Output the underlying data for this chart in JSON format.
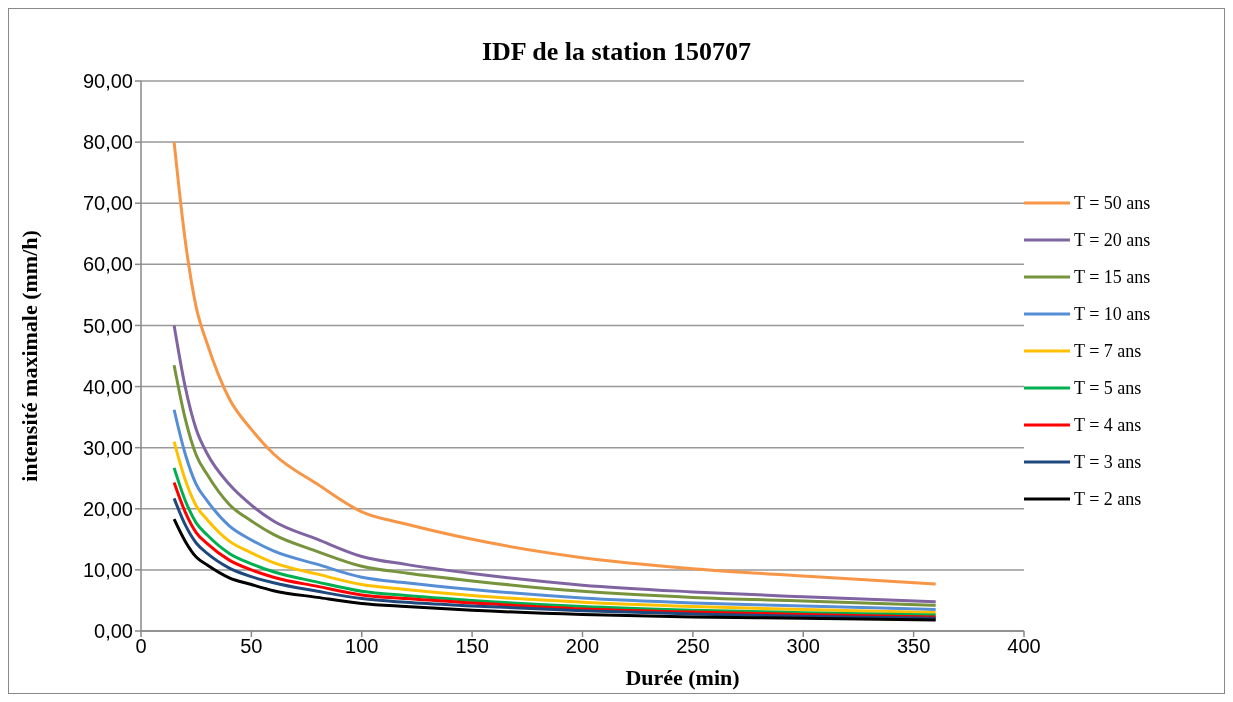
{
  "chart_data": {
    "type": "line",
    "title": "IDF de la station 150707",
    "xlabel": "Durée (min)",
    "ylabel": "intensité maximale (mm/h)",
    "x": [
      15,
      20,
      25,
      30,
      40,
      50,
      60,
      80,
      100,
      120,
      150,
      200,
      250,
      300,
      360
    ],
    "series": [
      {
        "name": "T = 50 ans",
        "color": "#f79646",
        "values": [
          80,
          64,
          53,
          47,
          38,
          33,
          29,
          24,
          19.5,
          17.5,
          15,
          12,
          10.2,
          9,
          7.7
        ]
      },
      {
        "name": "T = 20 ans",
        "color": "#8064a2",
        "values": [
          50,
          40,
          33,
          29,
          24,
          20.6,
          18,
          15,
          12.2,
          10.9,
          9.4,
          7.5,
          6.4,
          5.6,
          4.8
        ]
      },
      {
        "name": "T = 15 ans",
        "color": "#77933c",
        "values": [
          43.5,
          34.8,
          28.8,
          25.6,
          20.7,
          18,
          15.8,
          13,
          10.6,
          9.5,
          8.2,
          6.5,
          5.5,
          4.9,
          4.2
        ]
      },
      {
        "name": "T = 10 ans",
        "color": "#558ed5",
        "values": [
          36.2,
          29,
          24,
          21.3,
          17.2,
          14.9,
          13.1,
          10.9,
          8.8,
          7.9,
          6.8,
          5.4,
          4.6,
          4.1,
          3.5
        ]
      },
      {
        "name": "T = 7 ans",
        "color": "#ffc000",
        "values": [
          31,
          24.8,
          20.5,
          18.2,
          14.7,
          12.8,
          11.2,
          9.3,
          7.6,
          6.8,
          5.8,
          4.7,
          4,
          3.5,
          3
        ]
      },
      {
        "name": "T = 5 ans",
        "color": "#00b050",
        "values": [
          26.7,
          21.4,
          17.7,
          15.7,
          12.7,
          11,
          9.7,
          8,
          6.5,
          5.8,
          5,
          4,
          3.4,
          3,
          2.6
        ]
      },
      {
        "name": "T = 4 ans",
        "color": "#ff0000",
        "values": [
          24.3,
          19.5,
          16.1,
          14.3,
          11.6,
          10,
          8.8,
          7.3,
          5.9,
          5.3,
          4.6,
          3.6,
          3.1,
          2.7,
          2.3
        ]
      },
      {
        "name": "T = 3 ans",
        "color": "#1f497d",
        "values": [
          21.7,
          17.4,
          14.4,
          12.7,
          10.3,
          8.9,
          7.9,
          6.5,
          5.3,
          4.7,
          4.1,
          3.3,
          2.8,
          2.4,
          2.1
        ]
      },
      {
        "name": "T = 2 ans",
        "color": "#000000",
        "values": [
          18.3,
          14.7,
          12.1,
          10.8,
          8.7,
          7.6,
          6.6,
          5.5,
          4.5,
          4,
          3.4,
          2.7,
          2.3,
          2.1,
          1.8
        ]
      }
    ],
    "xlim": [
      0,
      400
    ],
    "xticks": [
      0,
      50,
      100,
      150,
      200,
      250,
      300,
      350,
      400
    ],
    "ylim": [
      0,
      90
    ],
    "yticks": [
      {
        "value": 0,
        "label": "0,00"
      },
      {
        "value": 10,
        "label": "10,00"
      },
      {
        "value": 20,
        "label": "20,00"
      },
      {
        "value": 30,
        "label": "30,00"
      },
      {
        "value": 40,
        "label": "40,00"
      },
      {
        "value": 50,
        "label": "50,00"
      },
      {
        "value": 60,
        "label": "60,00"
      },
      {
        "value": 70,
        "label": "70,00"
      },
      {
        "value": 80,
        "label": "80,00"
      },
      {
        "value": 90,
        "label": "90,00"
      }
    ],
    "grid": "y",
    "legend": "right",
    "marker": "none",
    "line_style": "solid"
  }
}
